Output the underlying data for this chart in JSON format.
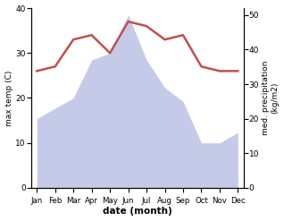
{
  "months": [
    "Jan",
    "Feb",
    "Mar",
    "Apr",
    "May",
    "Jun",
    "Jul",
    "Aug",
    "Sep",
    "Oct",
    "Nov",
    "Dec"
  ],
  "month_x": [
    0,
    1,
    2,
    3,
    4,
    5,
    6,
    7,
    8,
    9,
    10,
    11
  ],
  "max_temp": [
    26,
    27,
    33,
    34,
    30,
    37,
    36,
    33,
    34,
    27,
    26,
    26
  ],
  "precipitation": [
    20,
    23,
    26,
    37,
    39,
    50,
    37,
    29,
    25,
    13,
    13,
    16
  ],
  "temp_color": "#c0504d",
  "precip_fill_color": "#c5cae9",
  "temp_ylim": [
    0,
    40
  ],
  "precip_ylim": [
    0,
    52
  ],
  "temp_yticks": [
    0,
    10,
    20,
    30,
    40
  ],
  "precip_yticks": [
    0,
    10,
    20,
    30,
    40,
    50
  ],
  "xlabel": "date (month)",
  "ylabel_left": "max temp (C)",
  "ylabel_right": "med. precipitation\n(kg/m2)",
  "bg_color": "#ffffff",
  "line_width": 1.8
}
